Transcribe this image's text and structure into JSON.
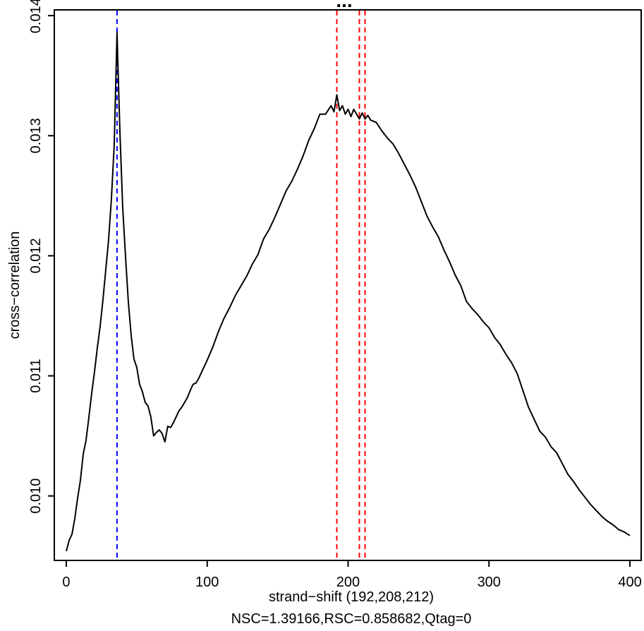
{
  "chart_data": {
    "type": "line",
    "title": "...",
    "xlabel": "strand−shift (192,208,212)",
    "subtitle": "NSC=1.39166,RSC=0.858682,Qtag=0",
    "ylabel": "cross−correlation",
    "xlim": [
      -8.5,
      408
    ],
    "ylim": [
      0.009463,
      0.014048
    ],
    "x_ticks": [
      0,
      100,
      200,
      300,
      400
    ],
    "x_tick_labels": [
      "0",
      "100",
      "200",
      "300",
      "400"
    ],
    "y_ticks": [
      0.01,
      0.011,
      0.012,
      0.013,
      0.014
    ],
    "y_tick_labels": [
      "0.010",
      "0.011",
      "0.012",
      "0.013",
      "0.014"
    ],
    "grid": false,
    "line_color": "#000000",
    "vlines": [
      {
        "x": 36,
        "color": "#0000ff",
        "style": "dashed"
      },
      {
        "x": 192,
        "color": "#ff0000",
        "style": "dashed"
      },
      {
        "x": 208,
        "color": "#ff0000",
        "style": "dashed"
      },
      {
        "x": 212,
        "color": "#ff0000",
        "style": "dashed"
      }
    ],
    "series": [
      {
        "x": [
          0,
          2,
          4,
          6,
          8,
          10,
          12,
          14,
          16,
          18,
          20,
          22,
          24,
          26,
          28,
          30,
          32,
          34,
          36,
          38,
          40,
          42,
          44,
          46,
          48,
          50,
          52,
          54,
          56,
          58,
          60,
          62,
          64,
          66,
          68,
          70,
          72,
          74,
          76,
          78,
          80,
          82,
          84,
          86,
          88,
          90,
          92,
          94,
          96,
          98,
          100,
          104,
          108,
          112,
          116,
          120,
          124,
          128,
          132,
          136,
          140,
          144,
          148,
          152,
          156,
          160,
          164,
          168,
          172,
          176,
          180,
          184,
          188,
          190,
          192,
          194,
          196,
          198,
          200,
          202,
          204,
          206,
          208,
          210,
          212,
          214,
          216,
          220,
          224,
          228,
          232,
          236,
          240,
          244,
          248,
          252,
          256,
          260,
          264,
          268,
          272,
          276,
          280,
          284,
          288,
          292,
          296,
          300,
          304,
          308,
          312,
          316,
          320,
          324,
          328,
          332,
          336,
          340,
          344,
          348,
          352,
          356,
          360,
          364,
          368,
          372,
          376,
          380,
          384,
          388,
          392,
          396,
          400
        ],
        "values": [
          0.00954,
          0.00963,
          0.00968,
          0.00981,
          0.00998,
          0.01013,
          0.01035,
          0.01046,
          0.01065,
          0.01085,
          0.01103,
          0.01123,
          0.01141,
          0.01163,
          0.01188,
          0.01213,
          0.01247,
          0.01292,
          0.01386,
          0.01305,
          0.01241,
          0.012,
          0.01162,
          0.01134,
          0.01114,
          0.01107,
          0.01093,
          0.01087,
          0.01078,
          0.01075,
          0.01066,
          0.0105,
          0.01053,
          0.01055,
          0.01052,
          0.01045,
          0.01058,
          0.01057,
          0.01061,
          0.01066,
          0.01071,
          0.01074,
          0.01078,
          0.01082,
          0.01088,
          0.01093,
          0.01094,
          0.01098,
          0.01103,
          0.01108,
          0.01113,
          0.01124,
          0.01137,
          0.01148,
          0.01157,
          0.01167,
          0.01175,
          0.01183,
          0.01193,
          0.01201,
          0.01214,
          0.01222,
          0.01232,
          0.01243,
          0.01254,
          0.01262,
          0.01272,
          0.01283,
          0.01296,
          0.01306,
          0.01318,
          0.01318,
          0.01325,
          0.0132,
          0.01334,
          0.01321,
          0.01325,
          0.01318,
          0.01322,
          0.01316,
          0.01322,
          0.01318,
          0.01314,
          0.01319,
          0.01314,
          0.01317,
          0.01313,
          0.01311,
          0.01304,
          0.01298,
          0.01293,
          0.01285,
          0.01276,
          0.01267,
          0.01257,
          0.01245,
          0.01233,
          0.01224,
          0.01216,
          0.01205,
          0.01195,
          0.01184,
          0.01175,
          0.01162,
          0.01156,
          0.01151,
          0.01145,
          0.0114,
          0.01132,
          0.01126,
          0.01118,
          0.01111,
          0.01102,
          0.01088,
          0.01074,
          0.01064,
          0.01054,
          0.01049,
          0.01041,
          0.01036,
          0.01027,
          0.01018,
          0.01012,
          0.01005,
          0.00999,
          0.00993,
          0.00988,
          0.00983,
          0.00979,
          0.00976,
          0.00972,
          0.0097,
          0.00967
        ]
      }
    ]
  }
}
